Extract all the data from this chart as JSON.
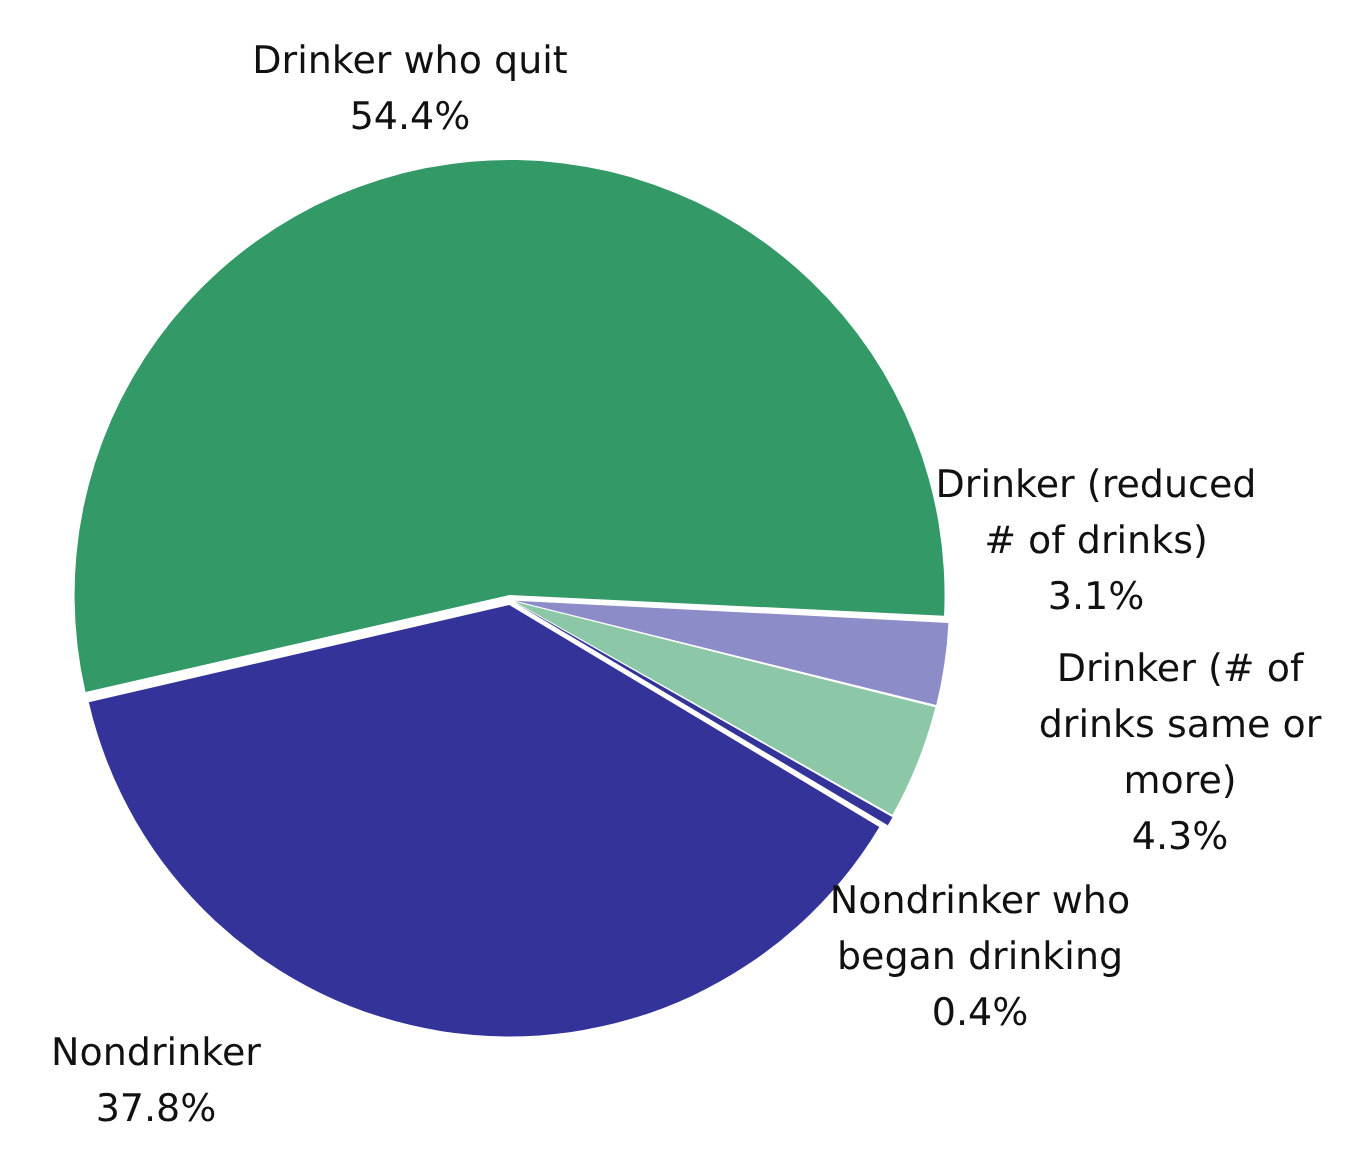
{
  "chart_data": {
    "type": "pie",
    "categories": [
      "Drinker who quit",
      "Drinker (reduced # of drinks)",
      "Drinker (# of drinks same or more)",
      "Nondrinker who began drinking",
      "Nondrinker"
    ],
    "values": [
      54.4,
      3.1,
      4.3,
      0.4,
      37.8
    ],
    "value_labels": [
      "54.4%",
      "3.1%",
      "4.3%",
      "0.4%",
      "37.8%"
    ],
    "colors": [
      "#339966",
      "#8c8cc8",
      "#8cc8a8",
      "#333399",
      "#333399"
    ]
  }
}
